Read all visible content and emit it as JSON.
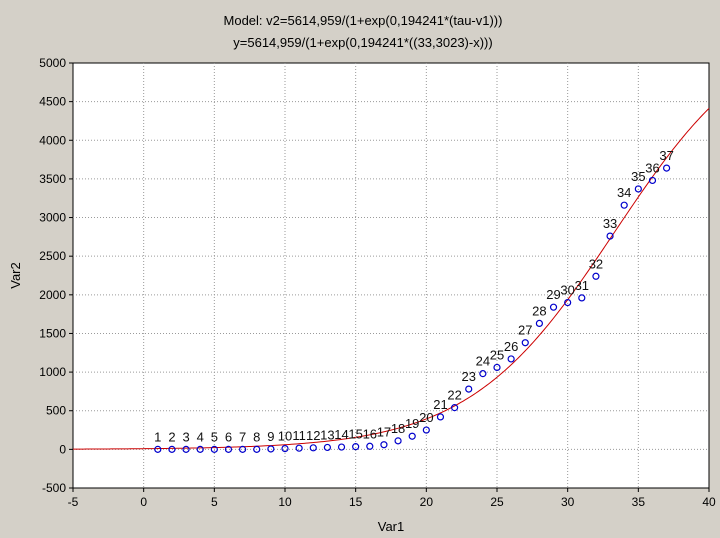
{
  "chart_data": {
    "type": "scatter",
    "title_lines": [
      "Model: v2=5614,959/(1+exp(0,194241*(tau-v1)))",
      "y=5614,959/(1+exp(0,194241*((33,3023)-x)))"
    ],
    "xlabel": "Var1",
    "ylabel": "Var2",
    "xlim": [
      -5,
      40
    ],
    "ylim": [
      -500,
      5000
    ],
    "x_ticks": [
      -5,
      0,
      5,
      10,
      15,
      20,
      25,
      30,
      35,
      40
    ],
    "y_ticks": [
      -500,
      0,
      500,
      1000,
      1500,
      2000,
      2500,
      3000,
      3500,
      4000,
      4500,
      5000
    ],
    "grid": true,
    "series": [
      {
        "type": "scatter",
        "marker": "circle",
        "color": "#0000cc",
        "point_labels": [
          "1",
          "2",
          "3",
          "4",
          "5",
          "6",
          "7",
          "8",
          "9",
          "10",
          "11",
          "12",
          "13",
          "14",
          "15",
          "16",
          "17",
          "18",
          "19",
          "20",
          "21",
          "22",
          "23",
          "24",
          "25",
          "26",
          "27",
          "28",
          "29",
          "30",
          "31",
          "32",
          "33",
          "34",
          "35",
          "36",
          "37"
        ],
        "x": [
          1,
          2,
          3,
          4,
          5,
          6,
          7,
          8,
          9,
          10,
          11,
          12,
          13,
          14,
          15,
          16,
          17,
          18,
          19,
          20,
          21,
          22,
          23,
          24,
          25,
          26,
          27,
          28,
          29,
          30,
          31,
          32,
          33,
          34,
          35,
          36,
          37
        ],
        "y": [
          0,
          0,
          0,
          0,
          0,
          0,
          0,
          0,
          5,
          10,
          15,
          20,
          25,
          30,
          35,
          40,
          60,
          110,
          170,
          250,
          420,
          540,
          780,
          980,
          1060,
          1170,
          1380,
          1630,
          1840,
          1900,
          1960,
          2240,
          2760,
          3160,
          3370,
          3480,
          3640
        ]
      },
      {
        "type": "line",
        "color": "#cc0000",
        "model": {
          "A": 5614.959,
          "k": 0.194241,
          "tau": 33.3023
        }
      }
    ]
  }
}
